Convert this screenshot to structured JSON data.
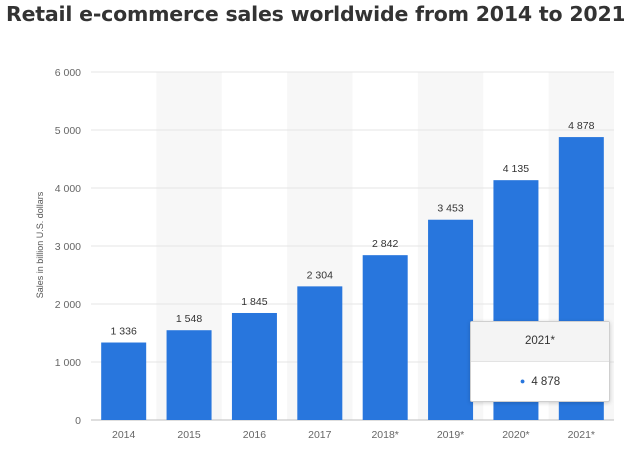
{
  "title": "Retail e-commerce sales worldwide from 2014 to 2021",
  "colors": {
    "bar": "#2876dd",
    "band": "#f7f7f7",
    "grid": "#e4e4e4",
    "text": "#333333",
    "axis_text": "#666666"
  },
  "chart_data": {
    "type": "bar",
    "title": "Retail e-commerce sales worldwide from 2014 to 2021",
    "xlabel": "",
    "ylabel": "Sales in billion U.S. dollars",
    "categories": [
      "2014",
      "2015",
      "2016",
      "2017",
      "2018*",
      "2019*",
      "2020*",
      "2021*"
    ],
    "values": [
      1336,
      1548,
      1845,
      2304,
      2842,
      3453,
      4135,
      4878
    ],
    "value_labels": [
      "1 336",
      "1 548",
      "1 845",
      "2 304",
      "2 842",
      "3 453",
      "4 135",
      "4 878"
    ],
    "ylim": [
      0,
      6000
    ],
    "yticks": [
      0,
      1000,
      2000,
      3000,
      4000,
      5000,
      6000
    ],
    "ytick_labels": [
      "0",
      "1 000",
      "2 000",
      "3 000",
      "4 000",
      "5 000",
      "6 000"
    ],
    "grid": true,
    "legend": false
  },
  "tooltip": {
    "header": "2021*",
    "dot": "●",
    "value": "4 878"
  }
}
